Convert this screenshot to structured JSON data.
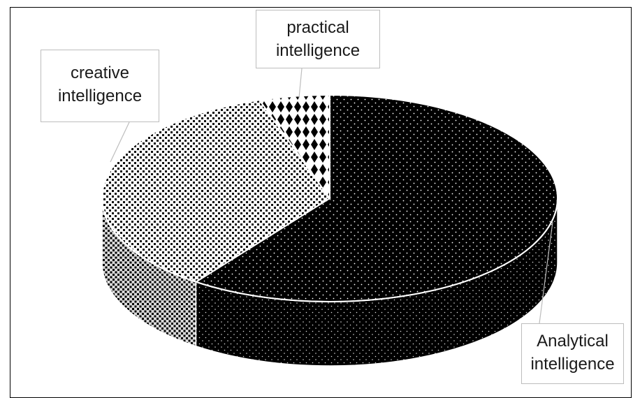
{
  "chart_data": {
    "type": "pie",
    "style": "3d",
    "legend": "none",
    "slices": [
      {
        "label": "Analytical intelligence",
        "value": 60,
        "pattern": "dark-dotted"
      },
      {
        "label": "creative intelligence",
        "value": 35,
        "pattern": "light-checker"
      },
      {
        "label": "practical intelligence",
        "value": 5,
        "pattern": "diamond"
      }
    ]
  },
  "labels": {
    "practical": [
      "practical",
      "intelligence"
    ],
    "creative": [
      "creative",
      "intelligence"
    ],
    "analytical": [
      "Analytical",
      "intelligence"
    ]
  },
  "colors": {
    "dark": "#000000",
    "light": "#ffffff",
    "frame": "#000000",
    "callout_border": "#bdbdbd"
  }
}
